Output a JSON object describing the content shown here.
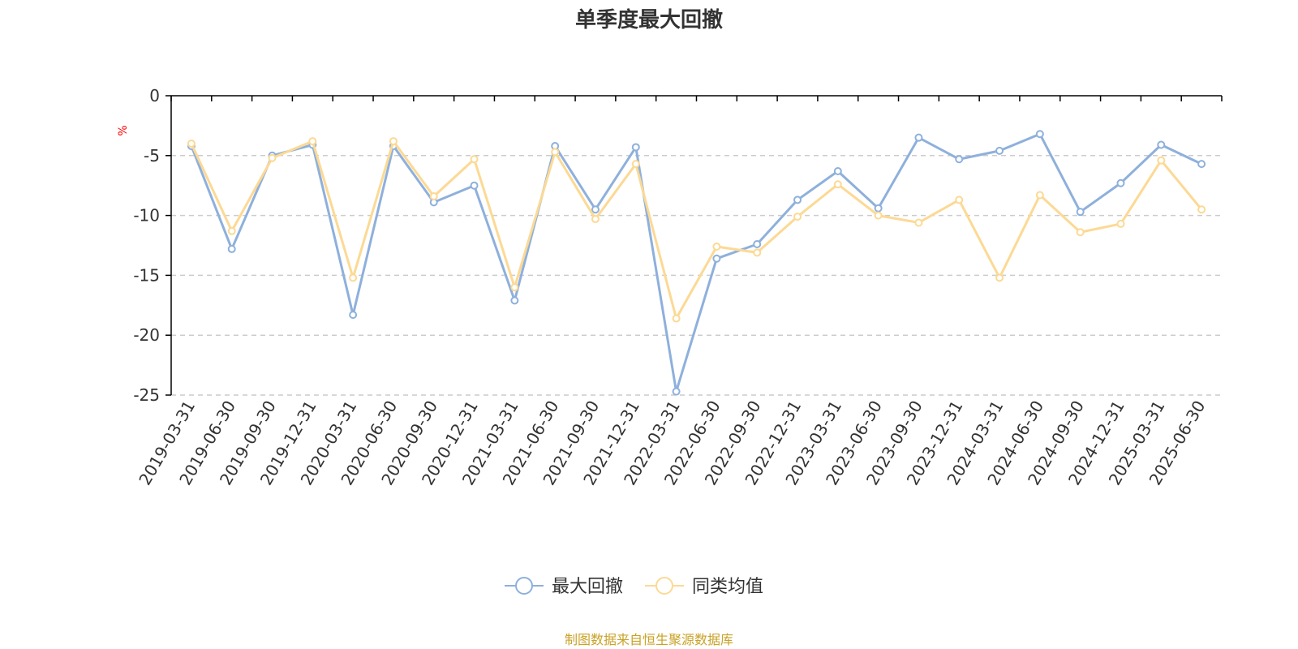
{
  "chart_data": {
    "type": "line",
    "title": "单季度最大回撤",
    "ylabel": "%",
    "xlabel": "",
    "ylim": [
      -25,
      0
    ],
    "yticks": [
      0,
      -5,
      -10,
      -15,
      -20,
      -25
    ],
    "grid": true,
    "legend_position": "bottom-center",
    "categories": [
      "2019-03-31",
      "2019-06-30",
      "2019-09-30",
      "2019-12-31",
      "2020-03-31",
      "2020-06-30",
      "2020-09-30",
      "2020-12-31",
      "2021-03-31",
      "2021-06-30",
      "2021-09-30",
      "2021-12-31",
      "2022-03-31",
      "2022-06-30",
      "2022-09-30",
      "2022-12-31",
      "2023-03-31",
      "2023-06-30",
      "2023-09-30",
      "2023-12-31",
      "2024-03-31",
      "2024-06-30",
      "2024-09-30",
      "2024-12-31",
      "2025-03-31",
      "2025-06-30"
    ],
    "series": [
      {
        "name": "最大回撤",
        "color": "#8eb0dc",
        "values": [
          -4.2,
          -12.8,
          -5.0,
          -4.1,
          -18.3,
          -4.2,
          -8.9,
          -7.5,
          -17.1,
          -4.2,
          -9.5,
          -4.3,
          -24.7,
          -13.6,
          -12.4,
          -8.7,
          -6.3,
          -9.4,
          -3.5,
          -5.3,
          -4.6,
          -3.2,
          -9.7,
          -7.3,
          -4.1,
          -5.7
        ]
      },
      {
        "name": "同类均值",
        "color": "#fcd994",
        "values": [
          -4.0,
          -11.3,
          -5.2,
          -3.8,
          -15.2,
          -3.8,
          -8.4,
          -5.3,
          -16.0,
          -4.7,
          -10.3,
          -5.7,
          -18.6,
          -12.6,
          -13.1,
          -10.1,
          -7.4,
          -10.0,
          -10.6,
          -8.7,
          -15.2,
          -8.3,
          -11.4,
          -10.7,
          -5.4,
          -9.5
        ]
      }
    ]
  },
  "source": "制图数据来自恒生聚源数据库",
  "colors": {
    "axis": "#000000",
    "grid": "#cccccc",
    "text": "#333333",
    "unit": "#ff0000",
    "source": "#c9a227"
  }
}
